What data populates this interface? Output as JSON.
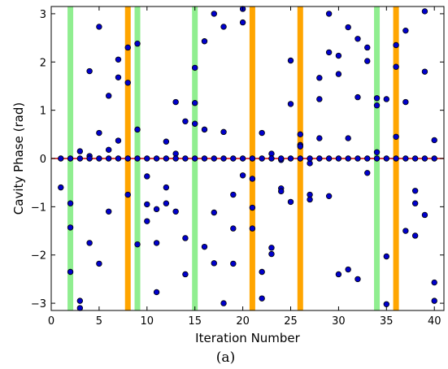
{
  "chart_data": {
    "type": "scatter",
    "xlabel": "Iteration Number",
    "ylabel": "Cavity Phase (rad)",
    "caption": "(a)",
    "xlim": [
      0,
      41
    ],
    "ylim": [
      -3.15,
      3.15
    ],
    "xticks": [
      0,
      5,
      10,
      15,
      20,
      25,
      30,
      35,
      40
    ],
    "yticks": [
      -3,
      -2,
      -1,
      0,
      1,
      2,
      3
    ],
    "reference_line": {
      "y": 0,
      "color": "#cc0000"
    },
    "marker_color": "#0000cc",
    "highlight_bands": [
      {
        "x": 2,
        "color": "#90ee90"
      },
      {
        "x": 8,
        "color": "#ffa500"
      },
      {
        "x": 9,
        "color": "#90ee90"
      },
      {
        "x": 15,
        "color": "#90ee90"
      },
      {
        "x": 21,
        "color": "#ffa500"
      },
      {
        "x": 26,
        "color": "#ffa500"
      },
      {
        "x": 34,
        "color": "#90ee90"
      },
      {
        "x": 36,
        "color": "#ffa500"
      }
    ],
    "points": [
      [
        1,
        -0.6
      ],
      [
        1,
        0
      ],
      [
        2,
        -0.93
      ],
      [
        2,
        -1.43
      ],
      [
        2,
        -2.35
      ],
      [
        2,
        0
      ],
      [
        3,
        0.15
      ],
      [
        3,
        -2.95
      ],
      [
        3,
        -3.1
      ],
      [
        3,
        0
      ],
      [
        4,
        1.81
      ],
      [
        4,
        0.05
      ],
      [
        4,
        -1.75
      ],
      [
        4,
        0
      ],
      [
        5,
        2.73
      ],
      [
        5,
        0.53
      ],
      [
        5,
        -2.18
      ],
      [
        5,
        0
      ],
      [
        6,
        1.3
      ],
      [
        6,
        0.18
      ],
      [
        6,
        -1.1
      ],
      [
        6,
        0
      ],
      [
        7,
        2.05
      ],
      [
        7,
        1.68
      ],
      [
        7,
        0.37
      ],
      [
        7,
        0
      ],
      [
        8,
        2.3
      ],
      [
        8,
        1.57
      ],
      [
        8,
        -0.75
      ],
      [
        8,
        0
      ],
      [
        9,
        2.38
      ],
      [
        9,
        0.6
      ],
      [
        9,
        -1.78
      ],
      [
        9,
        0
      ],
      [
        10,
        -0.37
      ],
      [
        10,
        -0.95
      ],
      [
        10,
        -1.3
      ],
      [
        10,
        0
      ],
      [
        11,
        -1.05
      ],
      [
        11,
        -1.75
      ],
      [
        11,
        -2.77
      ],
      [
        11,
        0
      ],
      [
        12,
        0.35
      ],
      [
        12,
        -0.6
      ],
      [
        12,
        -0.93
      ],
      [
        12,
        0
      ],
      [
        13,
        1.17
      ],
      [
        13,
        0.1
      ],
      [
        13,
        -1.1
      ],
      [
        13,
        0
      ],
      [
        14,
        0.77
      ],
      [
        14,
        -1.65
      ],
      [
        14,
        -2.4
      ],
      [
        14,
        0
      ],
      [
        15,
        1.88
      ],
      [
        15,
        1.15
      ],
      [
        15,
        0.72
      ],
      [
        15,
        0
      ],
      [
        16,
        2.43
      ],
      [
        16,
        0.6
      ],
      [
        16,
        -1.83
      ],
      [
        16,
        0
      ],
      [
        17,
        3.0
      ],
      [
        17,
        -1.12
      ],
      [
        17,
        -2.17
      ],
      [
        17,
        0
      ],
      [
        18,
        2.73
      ],
      [
        18,
        0.55
      ],
      [
        18,
        -3.0
      ],
      [
        18,
        0
      ],
      [
        19,
        -0.75
      ],
      [
        19,
        -1.45
      ],
      [
        19,
        -2.18
      ],
      [
        19,
        0
      ],
      [
        20,
        3.1
      ],
      [
        20,
        2.82
      ],
      [
        20,
        -0.35
      ],
      [
        20,
        0
      ],
      [
        21,
        -0.42
      ],
      [
        21,
        -1.02
      ],
      [
        21,
        -1.45
      ],
      [
        21,
        0
      ],
      [
        22,
        0.53
      ],
      [
        22,
        -2.35
      ],
      [
        22,
        -2.9
      ],
      [
        22,
        0
      ],
      [
        23,
        0.1
      ],
      [
        23,
        -1.85
      ],
      [
        23,
        -1.98
      ],
      [
        23,
        0
      ],
      [
        24,
        -0.03
      ],
      [
        24,
        -0.62
      ],
      [
        24,
        -0.68
      ],
      [
        24,
        0
      ],
      [
        25,
        2.03
      ],
      [
        25,
        1.13
      ],
      [
        25,
        -0.9
      ],
      [
        25,
        0
      ],
      [
        26,
        0.5
      ],
      [
        26,
        0.28
      ],
      [
        26,
        0.25
      ],
      [
        26,
        0
      ],
      [
        27,
        -0.1
      ],
      [
        27,
        -0.75
      ],
      [
        27,
        -0.85
      ],
      [
        27,
        0
      ],
      [
        28,
        1.67
      ],
      [
        28,
        1.23
      ],
      [
        28,
        0.42
      ],
      [
        28,
        0
      ],
      [
        29,
        3.0
      ],
      [
        29,
        2.2
      ],
      [
        29,
        -0.78
      ],
      [
        29,
        0
      ],
      [
        30,
        2.13
      ],
      [
        30,
        1.75
      ],
      [
        30,
        -2.4
      ],
      [
        30,
        0
      ],
      [
        31,
        2.72
      ],
      [
        31,
        0.42
      ],
      [
        31,
        -2.3
      ],
      [
        31,
        0
      ],
      [
        32,
        2.48
      ],
      [
        32,
        1.27
      ],
      [
        32,
        -2.5
      ],
      [
        32,
        0
      ],
      [
        33,
        2.3
      ],
      [
        33,
        2.02
      ],
      [
        33,
        -0.3
      ],
      [
        33,
        0
      ],
      [
        34,
        1.25
      ],
      [
        34,
        1.1
      ],
      [
        34,
        0.13
      ],
      [
        34,
        0
      ],
      [
        35,
        1.23
      ],
      [
        35,
        -2.03
      ],
      [
        35,
        -3.02
      ],
      [
        35,
        0
      ],
      [
        36,
        2.35
      ],
      [
        36,
        1.9
      ],
      [
        36,
        0.45
      ],
      [
        36,
        0
      ],
      [
        37,
        2.65
      ],
      [
        37,
        1.17
      ],
      [
        37,
        -1.5
      ],
      [
        37,
        0
      ],
      [
        38,
        -0.67
      ],
      [
        38,
        -0.93
      ],
      [
        38,
        -1.6
      ],
      [
        38,
        0
      ],
      [
        39,
        3.05
      ],
      [
        39,
        1.8
      ],
      [
        39,
        -1.17
      ],
      [
        39,
        0
      ],
      [
        40,
        0.38
      ],
      [
        40,
        -2.57
      ],
      [
        40,
        -2.95
      ],
      [
        40,
        0
      ]
    ]
  }
}
